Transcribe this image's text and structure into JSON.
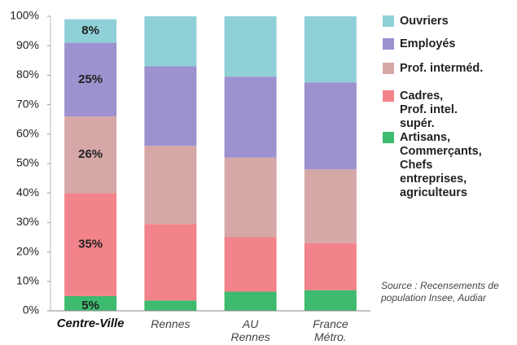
{
  "chart_data": {
    "type": "stacked_bar",
    "categories": [
      "Centre-Ville",
      "Rennes",
      "AU Rennes",
      "France Métro."
    ],
    "series": [
      {
        "name": "Artisans, Commerçants, Chefs entreprises, agriculteurs",
        "color": "#3dbb6e",
        "values": [
          5,
          3.5,
          6.5,
          7
        ],
        "value_labels": [
          "5%",
          null,
          null,
          null
        ]
      },
      {
        "name": "Cadres, Prof. intel. supér.",
        "color": "#f2838a",
        "values": [
          35,
          26,
          18.5,
          16
        ],
        "value_labels": [
          "35%",
          null,
          null,
          null
        ]
      },
      {
        "name": "Prof. interméd.",
        "color": "#d6a7a7",
        "values": [
          26,
          26.5,
          27,
          25
        ],
        "value_labels": [
          "26%",
          null,
          null,
          null
        ]
      },
      {
        "name": "Employés",
        "color": "#9d91cf",
        "values": [
          25,
          27,
          27.5,
          29.5
        ],
        "value_labels": [
          "25%",
          null,
          null,
          null
        ]
      },
      {
        "name": "Ouvriers",
        "color": "#8fd0d7",
        "values": [
          8,
          17,
          20.5,
          22.5
        ],
        "value_labels": [
          "8%",
          null,
          null,
          null
        ]
      }
    ],
    "ylim": [
      0,
      100
    ],
    "yticks": [
      {
        "value": 0,
        "label": "0%"
      },
      {
        "value": 10,
        "label": "10%"
      },
      {
        "value": 20,
        "label": "20%"
      },
      {
        "value": 30,
        "label": "30%"
      },
      {
        "value": 40,
        "label": "40%"
      },
      {
        "value": 50,
        "label": "50%"
      },
      {
        "value": 60,
        "label": "60%"
      },
      {
        "value": 70,
        "label": "70%"
      },
      {
        "value": 80,
        "label": "80%"
      },
      {
        "value": 90,
        "label": "90%"
      },
      {
        "value": 100,
        "label": "100%"
      }
    ],
    "source": "Source : Recensements de population Insee, Audiar"
  }
}
